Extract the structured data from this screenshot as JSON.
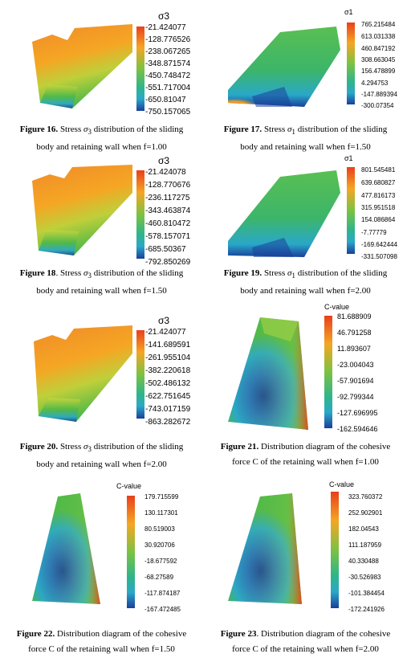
{
  "colors": {
    "scale_top": "#e8401c",
    "scale_upper": "#f5a623",
    "scale_mid": "#4db848",
    "scale_lower": "#2aa8c8",
    "scale_bottom": "#1a3f9a"
  },
  "figures": [
    {
      "id": "fig16",
      "number": "Figure 16.",
      "text_pre": "Stress",
      "symbol": "σ",
      "sub": "3",
      "text_post": "distribution of the sliding",
      "line2": "body and retaining wall when f=1.00",
      "legend_title": "σ3",
      "legend_labels": [
        "-21.424077",
        "-128.776526",
        "-238.067265",
        "-348.871574",
        "-450.748472",
        "-551.717004",
        "-650.81047",
        "-750.157065"
      ]
    },
    {
      "id": "fig17",
      "number": "Figure 17.",
      "text_pre": "Stress",
      "symbol": "σ",
      "sub": "1",
      "text_post": "distribution of the sliding",
      "line2": "body and retaining wall when f=1.50",
      "legend_title": "σ1",
      "legend_labels": [
        "765.215484",
        "613.031338",
        "460.847192",
        "308.663045",
        "156.478899",
        "4.294753",
        "-147.889394",
        "-300.07354"
      ]
    },
    {
      "id": "fig18",
      "number": "Figure 18",
      "text_pre": ". Stress",
      "symbol": "σ",
      "sub": "3",
      "text_post": "distribution of the sliding",
      "line2": "body and retaining wall when f=1.50",
      "legend_title": "σ3",
      "legend_labels": [
        "-21.424078",
        "-128.770676",
        "-236.117275",
        "-343.463874",
        "-460.810472",
        "-578.157071",
        "-685.50367",
        "-792.850269"
      ]
    },
    {
      "id": "fig19",
      "number": "Figure 19.",
      "text_pre": "Stress",
      "symbol": "σ",
      "sub": "1",
      "text_post": "distribution of the sliding",
      "line2": "body and retaining wall when f=2.00",
      "legend_title": "σ1",
      "legend_labels": [
        "801.545481",
        "639.680827",
        "477.816173",
        "315.951518",
        "154.086864",
        "-7.77779",
        "-169.642444",
        "-331.507098"
      ]
    },
    {
      "id": "fig20",
      "number": "Figure 20.",
      "text_pre": "Stress",
      "symbol": "σ",
      "sub": "3",
      "text_post": "distribution of the sliding",
      "line2": "body and retaining wall when f=2.00",
      "legend_title": "σ3",
      "legend_labels": [
        "-21.424077",
        "-141.689591",
        "-261.955104",
        "-382.220618",
        "-502.486132",
        "-622.751645",
        "-743.017159",
        "-863.282672"
      ]
    },
    {
      "id": "fig21",
      "number": "Figure 21.",
      "text_pre": "Distribution diagram of the cohesive",
      "line2": "force C of the retaining wall when f=1.00",
      "legend_title": "C-value",
      "legend_labels": [
        "81.688909",
        "46.791258",
        "11.893607",
        "-23.004043",
        "-57.901694",
        "-92.799344",
        "-127.696995",
        "-162.594646"
      ]
    },
    {
      "id": "fig22",
      "number": "Figure 22.",
      "text_pre": "Distribution diagram of the cohesive",
      "line2": "force C of the retaining wall when f=1.50",
      "legend_title": "C-value",
      "legend_labels": [
        "179.715599",
        "130.117301",
        "80.519003",
        "30.920706",
        "-18.677592",
        "-68.27589",
        "-117.874187",
        "-167.472485"
      ]
    },
    {
      "id": "fig23",
      "number": "Figure 23",
      "text_pre": ". Distribution diagram of the cohesive",
      "line2": "force C of the retaining wall when f=2.00",
      "legend_title": "C-value",
      "legend_labels": [
        "323.760372",
        "252.902901",
        "182.04543",
        "111.187959",
        "40.330488",
        "-30.526983",
        "-101.384454",
        "-172.241926"
      ]
    }
  ]
}
